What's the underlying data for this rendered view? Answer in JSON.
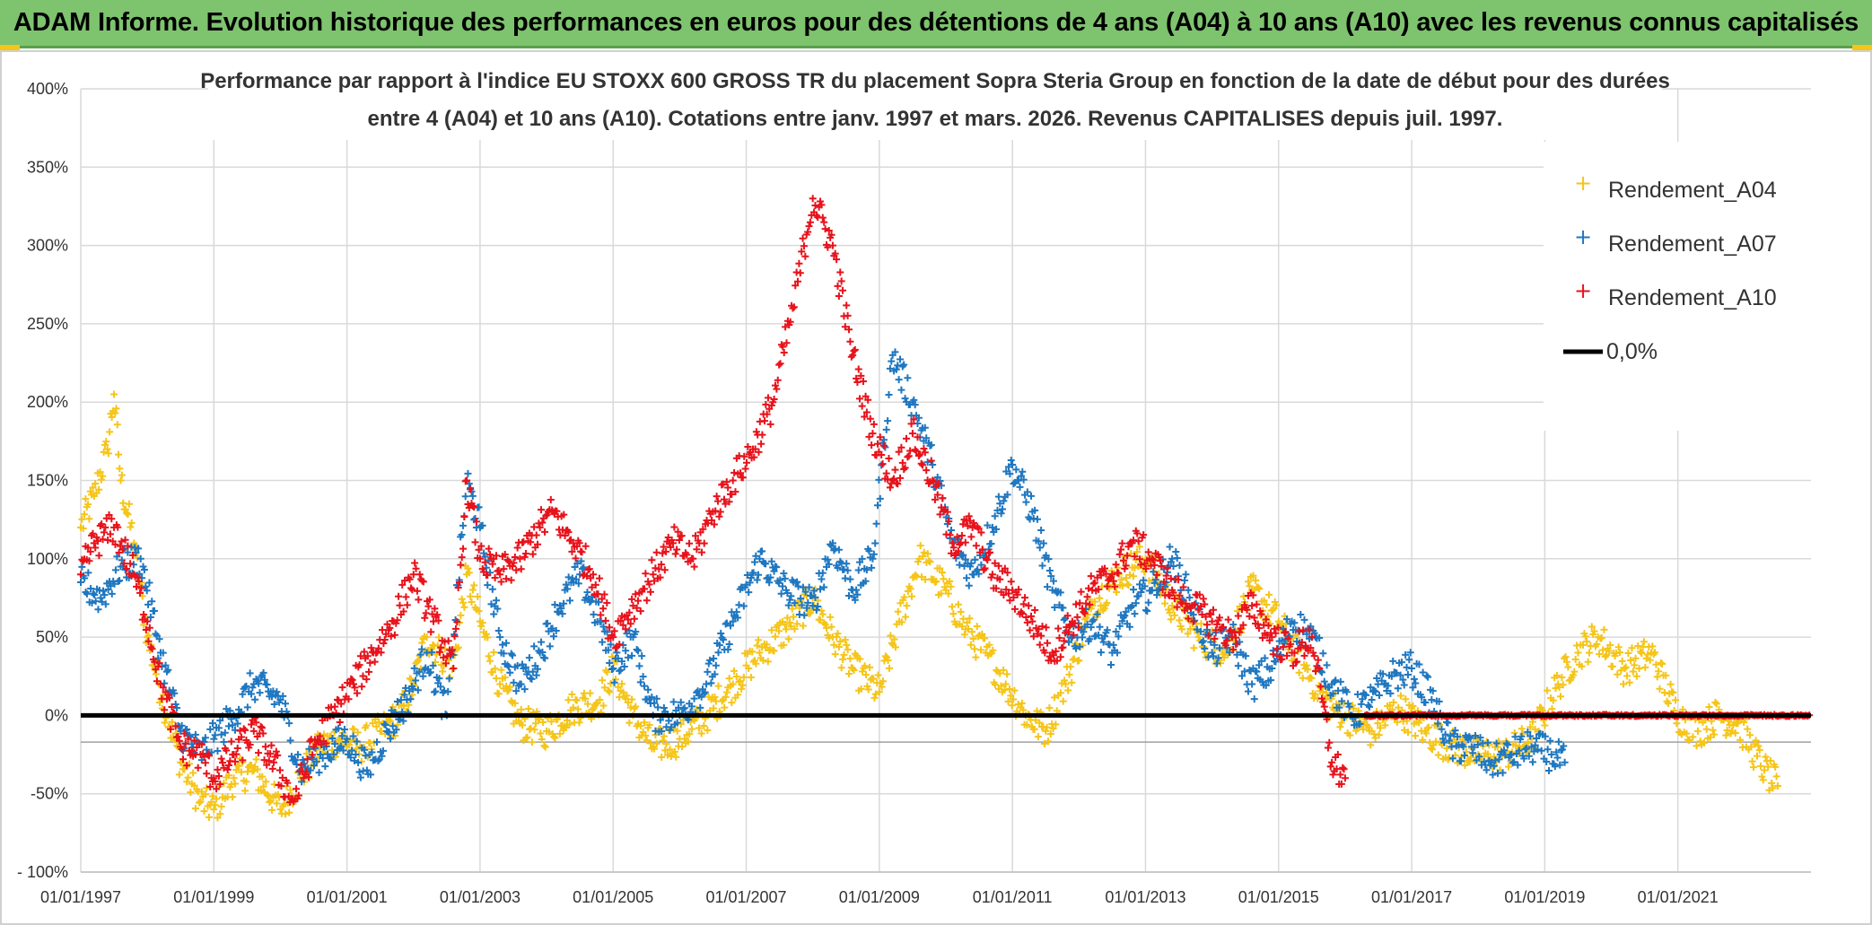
{
  "header": {
    "title": "ADAM Informe. Evolution historique des performances en euros pour des détentions de 4 ans (A04) à 10 ans (A10) avec les revenus connus capitalisés"
  },
  "colors": {
    "banner": "#7ec36e",
    "A04": "#f5c518",
    "A07": "#1f77c0",
    "A10": "#e8121b",
    "zero_line": "#000000"
  },
  "chart_data": {
    "type": "scatter",
    "title_line1": "Performance par rapport à l'indice EU STOXX 600 GROSS TR  du placement Sopra Steria Group en fonction de la date de début pour des durées",
    "title_line2": "entre 4 (A04) et 10 ans (A10). Cotations entre janv. 1997 et mars. 2026. Revenus CAPITALISES depuis juil. 1997.",
    "ylim": [
      -100,
      400
    ],
    "xlim": [
      1997.0,
      2023.0
    ],
    "y_ticks": [
      400,
      350,
      300,
      250,
      200,
      150,
      100,
      50,
      0,
      -50,
      -100
    ],
    "y_tick_labels": [
      "400%",
      "350%",
      "300%",
      "250%",
      "200%",
      "150%",
      "100%",
      "50%",
      "0%",
      "-50%",
      "- 100%"
    ],
    "x_ticks": [
      1997,
      1999,
      2001,
      2003,
      2005,
      2007,
      2009,
      2011,
      2013,
      2015,
      2017,
      2019,
      2021
    ],
    "x_tick_labels": [
      "01/01/1997",
      "01/01/1999",
      "01/01/2001",
      "01/01/2003",
      "01/01/2005",
      "01/01/2007",
      "01/01/2009",
      "01/01/2011",
      "01/01/2013",
      "01/01/2015",
      "01/01/2017",
      "01/01/2019",
      "01/01/2021"
    ],
    "legend": [
      "Rendement_A04",
      "Rendement_A07",
      "Rendement_A10",
      "0,0%"
    ],
    "zero_line": 0,
    "series": [
      {
        "name": "Rendement_A04",
        "x": [
          1997.0,
          1997.2,
          1997.4,
          1997.5,
          1997.6,
          1997.8,
          1998.0,
          1998.3,
          1998.5,
          1998.8,
          1999.0,
          1999.3,
          1999.6,
          2000.0,
          2000.3,
          2000.6,
          2000.9,
          2001.2,
          2001.5,
          2001.8,
          2002.0,
          2002.2,
          2002.4,
          2002.6,
          2002.8,
          2003.0,
          2003.3,
          2003.6,
          2004.0,
          2004.4,
          2004.8,
          2005.0,
          2005.3,
          2005.6,
          2006.0,
          2006.4,
          2006.8,
          2007.2,
          2007.6,
          2008.0,
          2008.3,
          2008.6,
          2009.0,
          2009.3,
          2009.6,
          2010.0,
          2010.3,
          2010.6,
          2010.9,
          2011.2,
          2011.5,
          2011.8,
          2012.2,
          2012.6,
          2013.0,
          2013.4,
          2013.8,
          2014.2,
          2014.6,
          2015.0,
          2015.4,
          2015.7,
          2016.0,
          2016.4,
          2016.8,
          2017.2,
          2017.6,
          2018.0,
          2018.4,
          2018.8,
          2019.2,
          2019.5,
          2019.8,
          2020.2,
          2020.6,
          2021.0,
          2021.3,
          2021.6,
          2021.9,
          2022.1,
          2022.3,
          2022.5
        ],
        "values": [
          120,
          140,
          170,
          205,
          150,
          110,
          50,
          0,
          -30,
          -55,
          -60,
          -40,
          -35,
          -60,
          -40,
          -20,
          -15,
          -20,
          -10,
          0,
          20,
          50,
          40,
          30,
          90,
          60,
          20,
          -5,
          -10,
          5,
          10,
          30,
          0,
          -20,
          -15,
          0,
          20,
          40,
          55,
          75,
          50,
          30,
          15,
          60,
          100,
          80,
          55,
          40,
          20,
          0,
          -10,
          20,
          70,
          90,
          100,
          70,
          50,
          40,
          80,
          60,
          30,
          10,
          0,
          -10,
          5,
          -10,
          -20,
          -25,
          -25,
          -15,
          20,
          40,
          50,
          30,
          40,
          0,
          -10,
          0,
          -5,
          -20,
          -35,
          -45
        ]
      },
      {
        "name": "Rendement_A07",
        "x": [
          1997.0,
          1997.3,
          1997.6,
          1997.9,
          1998.2,
          1998.5,
          1998.8,
          1999.0,
          1999.3,
          1999.6,
          2000.0,
          2000.3,
          2000.6,
          2001.0,
          2001.3,
          2001.6,
          2001.9,
          2002.2,
          2002.5,
          2002.8,
          2003.0,
          2003.3,
          2003.6,
          2003.9,
          2004.2,
          2004.5,
          2004.8,
          2005.0,
          2005.3,
          2005.6,
          2006.0,
          2006.4,
          2006.8,
          2007.2,
          2007.6,
          2008.0,
          2008.3,
          2008.6,
          2008.9,
          2009.2,
          2009.5,
          2009.8,
          2010.1,
          2010.4,
          2010.7,
          2011.0,
          2011.3,
          2011.6,
          2011.9,
          2012.2,
          2012.5,
          2012.8,
          2013.1,
          2013.4,
          2013.7,
          2014.0,
          2014.3,
          2014.6,
          2014.9,
          2015.2,
          2015.5,
          2015.8,
          2016.1,
          2016.4,
          2016.7,
          2017.0,
          2017.3,
          2017.6,
          2017.9,
          2018.2,
          2018.5,
          2018.8,
          2019.1,
          2019.3
        ],
        "values": [
          85,
          75,
          95,
          100,
          40,
          -10,
          -25,
          -15,
          0,
          20,
          10,
          -35,
          -25,
          -15,
          -35,
          -10,
          10,
          40,
          0,
          150,
          120,
          50,
          20,
          40,
          70,
          90,
          60,
          30,
          50,
          0,
          0,
          20,
          60,
          100,
          80,
          70,
          110,
          80,
          100,
          230,
          200,
          160,
          110,
          90,
          120,
          160,
          130,
          80,
          50,
          60,
          40,
          70,
          80,
          100,
          70,
          40,
          50,
          20,
          30,
          60,
          50,
          20,
          0,
          10,
          25,
          30,
          10,
          -20,
          -20,
          -30,
          -25,
          -20,
          -25,
          -30
        ]
      },
      {
        "name": "Rendement_A10",
        "x": [
          1997.0,
          1997.2,
          1997.5,
          1997.8,
          1998.0,
          1998.2,
          1998.5,
          1998.8,
          1999.0,
          1999.3,
          1999.6,
          1999.9,
          2000.2,
          2000.5,
          2000.8,
          2001.1,
          2001.4,
          2001.7,
          2002.0,
          2002.3,
          2002.6,
          2002.8,
          2003.0,
          2003.3,
          2003.6,
          2003.9,
          2004.1,
          2004.4,
          2004.7,
          2005.0,
          2005.3,
          2005.6,
          2005.9,
          2006.2,
          2006.5,
          2006.8,
          2007.1,
          2007.4,
          2007.7,
          2008.0,
          2008.3,
          2008.6,
          2008.9,
          2009.2,
          2009.5,
          2009.8,
          2010.1,
          2010.4,
          2010.7,
          2011.0,
          2011.3,
          2011.6,
          2011.9,
          2012.2,
          2012.5,
          2012.8,
          2013.1,
          2013.4,
          2013.7,
          2014.0,
          2014.3,
          2014.6,
          2014.9,
          2015.2,
          2015.5,
          2015.8,
          2016.0
        ],
        "values": [
          90,
          110,
          120,
          90,
          60,
          20,
          -20,
          -25,
          -40,
          -25,
          -10,
          -30,
          -55,
          -20,
          0,
          20,
          40,
          60,
          90,
          60,
          30,
          150,
          100,
          90,
          100,
          120,
          130,
          110,
          90,
          50,
          70,
          90,
          110,
          100,
          130,
          150,
          170,
          200,
          260,
          330,
          300,
          230,
          180,
          150,
          180,
          150,
          110,
          120,
          90,
          80,
          60,
          40,
          60,
          80,
          90,
          110,
          100,
          80,
          70,
          60,
          50,
          70,
          50,
          40,
          50,
          -30,
          -40
        ]
      }
    ],
    "flat_from": 2016.3,
    "flat_value": 0
  }
}
